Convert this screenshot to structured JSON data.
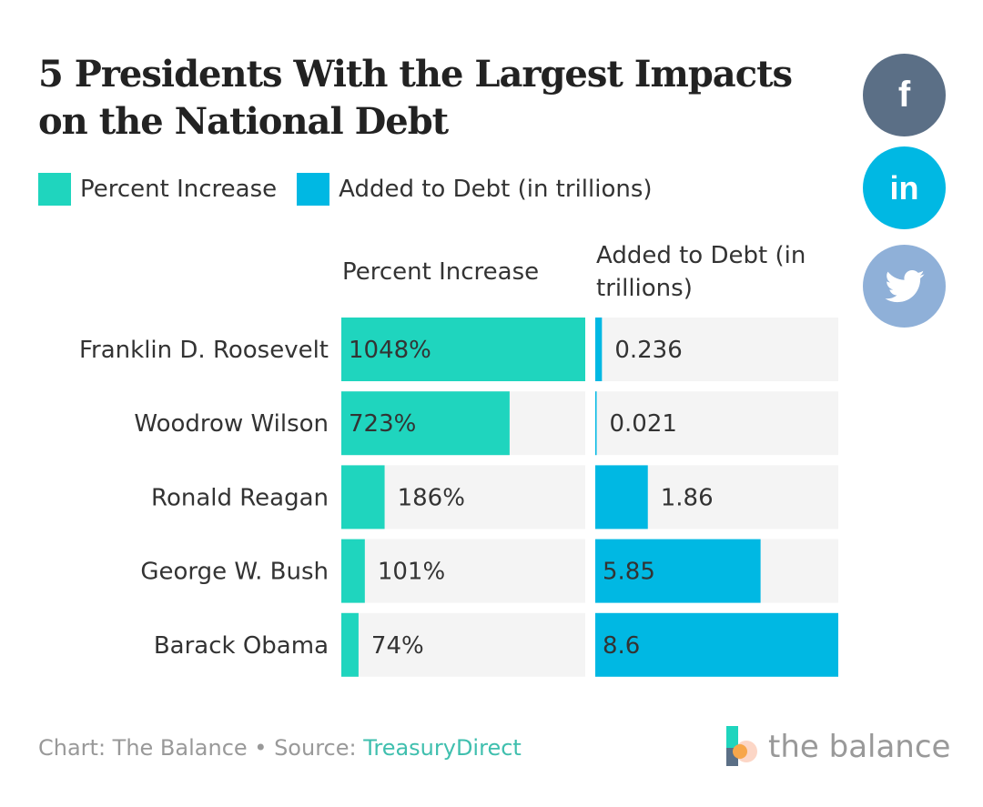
{
  "title": "5 Presidents With the Largest Impacts on the National Debt",
  "legend": [
    {
      "label": "Percent Increase",
      "color": "#1fd5be"
    },
    {
      "label": "Added to Debt (in trillions)",
      "color": "#00b8e3"
    }
  ],
  "social": {
    "facebook": "f",
    "linkedin": "in",
    "twitter": "twitter-bird-icon"
  },
  "footer": {
    "chart_credit": "Chart: The Balance • Source: ",
    "source": "TreasuryDirect"
  },
  "logo": {
    "text": "the balance"
  },
  "chart_data": {
    "type": "bar",
    "orientation": "horizontal",
    "categories": [
      "Franklin D. Roosevelt",
      "Woodrow Wilson",
      "Ronald Reagan",
      "George W. Bush",
      "Barack Obama"
    ],
    "series": [
      {
        "name": "Percent Increase",
        "values": [
          1048,
          723,
          186,
          101,
          74
        ],
        "labels": [
          "1048%",
          "723%",
          "186%",
          "101%",
          "74%"
        ],
        "color": "#1fd5be",
        "max": 1048
      },
      {
        "name": "Added to Debt (in trillions)",
        "values": [
          0.236,
          0.021,
          1.86,
          5.85,
          8.6
        ],
        "labels": [
          "0.236",
          "0.021",
          "1.86",
          "5.85",
          "8.6"
        ],
        "color": "#00b8e3",
        "max": 8.6
      }
    ],
    "column_headers": [
      "Percent Increase",
      "Added to Debt (in trillions)"
    ],
    "track_color": "#f4f4f4"
  }
}
